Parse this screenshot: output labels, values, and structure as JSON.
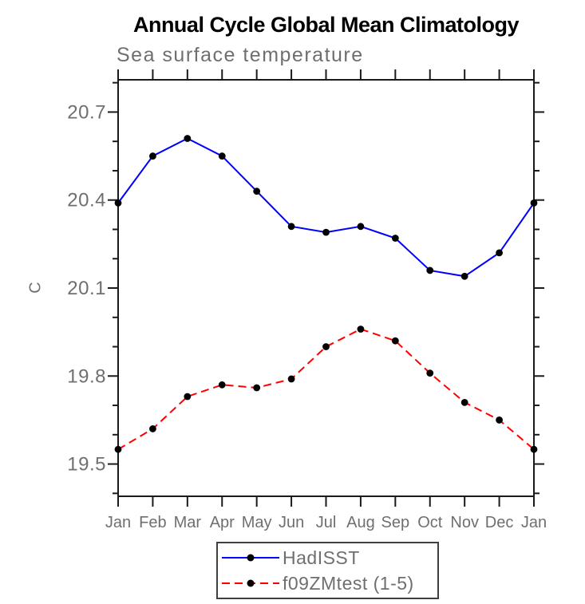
{
  "chart_data": {
    "type": "line",
    "title": "Annual Cycle Global Mean Climatology",
    "subtitle": "Sea surface temperature",
    "ylabel": "C",
    "xlabel": "",
    "categories": [
      "Jan",
      "Feb",
      "Mar",
      "Apr",
      "May",
      "Jun",
      "Jul",
      "Aug",
      "Sep",
      "Oct",
      "Nov",
      "Dec",
      "Jan"
    ],
    "series": [
      {
        "name": "HadISST",
        "color": "#0000ff",
        "line_style": "solid",
        "marker": "filled-circle",
        "marker_color": "#000000",
        "values": [
          20.39,
          20.55,
          20.61,
          20.55,
          20.43,
          20.31,
          20.29,
          20.31,
          20.27,
          20.16,
          20.14,
          20.22,
          20.39
        ]
      },
      {
        "name": "f09ZMtest (1-5)",
        "color": "#ff0000",
        "line_style": "dashed",
        "marker": "filled-circle",
        "marker_color": "#000000",
        "values": [
          19.55,
          19.62,
          19.73,
          19.77,
          19.76,
          19.79,
          19.9,
          19.96,
          19.92,
          19.81,
          19.71,
          19.65,
          19.55
        ]
      }
    ],
    "ylim": [
      19.39,
      20.81
    ],
    "yticks_major": [
      20.7,
      20.4,
      20.1,
      19.8,
      19.5
    ],
    "yticks_minor": [
      20.8,
      20.6,
      20.5,
      20.3,
      20.2,
      20.0,
      19.9,
      19.7,
      19.6,
      19.4
    ],
    "grid": false,
    "legend_position": "bottom-center"
  },
  "colors": {
    "axis": "#1a1a1a",
    "text_gray": "#6f6f6f",
    "title": "#000000",
    "background": "#ffffff"
  }
}
